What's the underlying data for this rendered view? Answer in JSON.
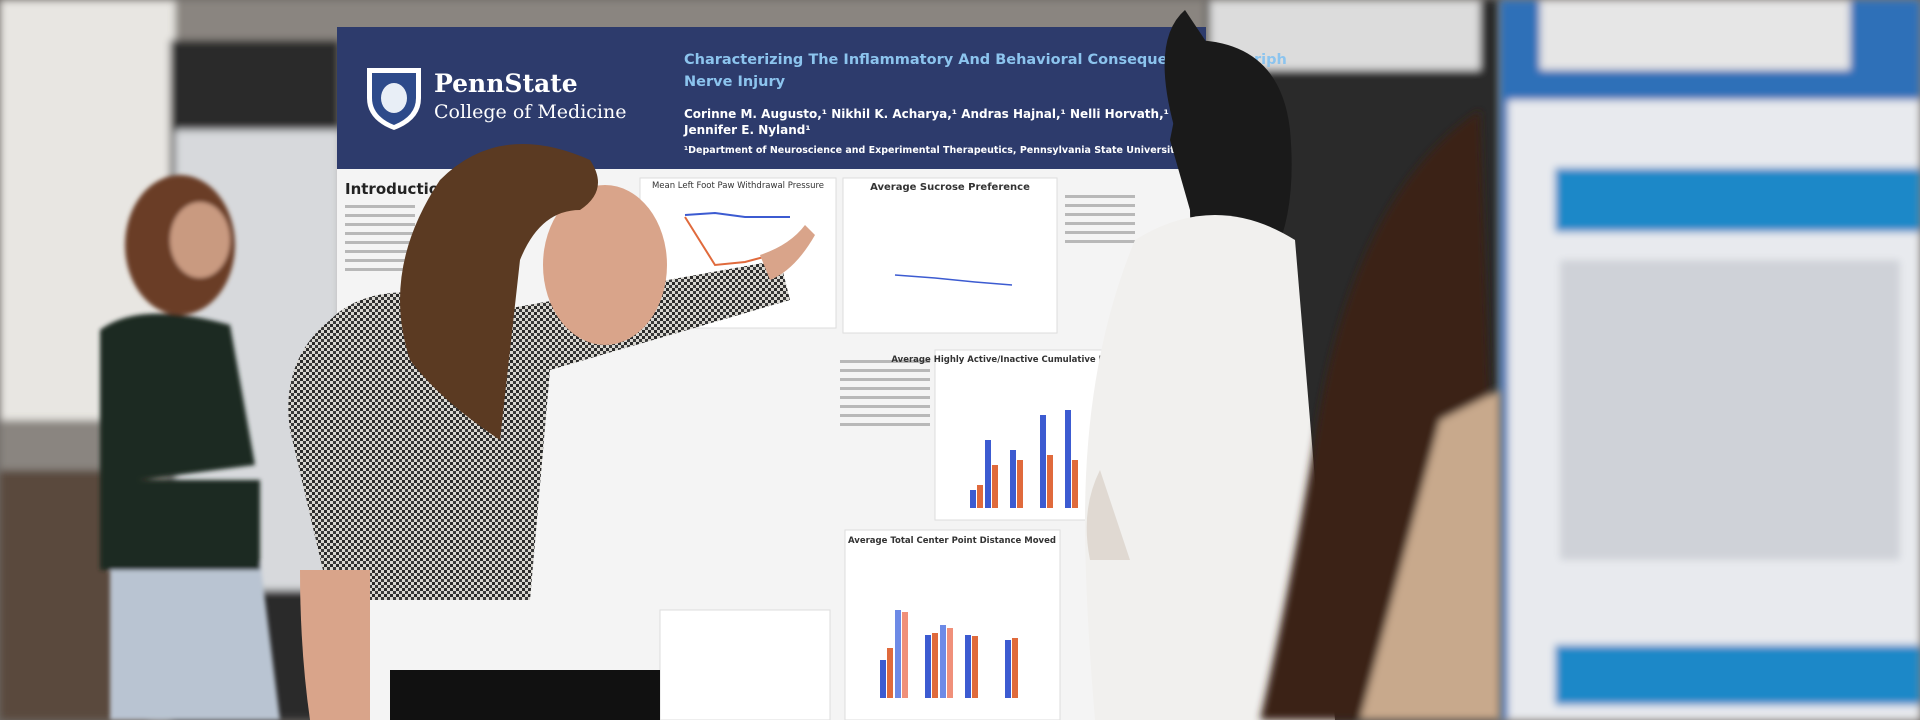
{
  "poster": {
    "logo": {
      "brand": "PennState",
      "unit": "College of Medicine"
    },
    "title": "Characterizing The Inflammatory And Behavioral Consequences Of Periph",
    "title_line2": "Nerve Injury",
    "authors": "Corinne M. Augusto,¹ Nikhil K. Acharya,¹ Andras Hajnal,¹ Nelli Horvath,¹ Cole Moran-Bar",
    "authors_line2": "Jennifer E. Nyland¹",
    "affiliation": "¹Department of Neuroscience and Experimental Therapeutics, Pennsylvania State University College of Me",
    "section": "Introduction",
    "figures": [
      "Mean Left Foot Paw Withdrawal Pressure",
      "Average Sucrose Preference",
      "Average Highly Active/Inactive Cumulative Duration Ratio",
      "Average Total Center Point Distance Moved"
    ]
  }
}
